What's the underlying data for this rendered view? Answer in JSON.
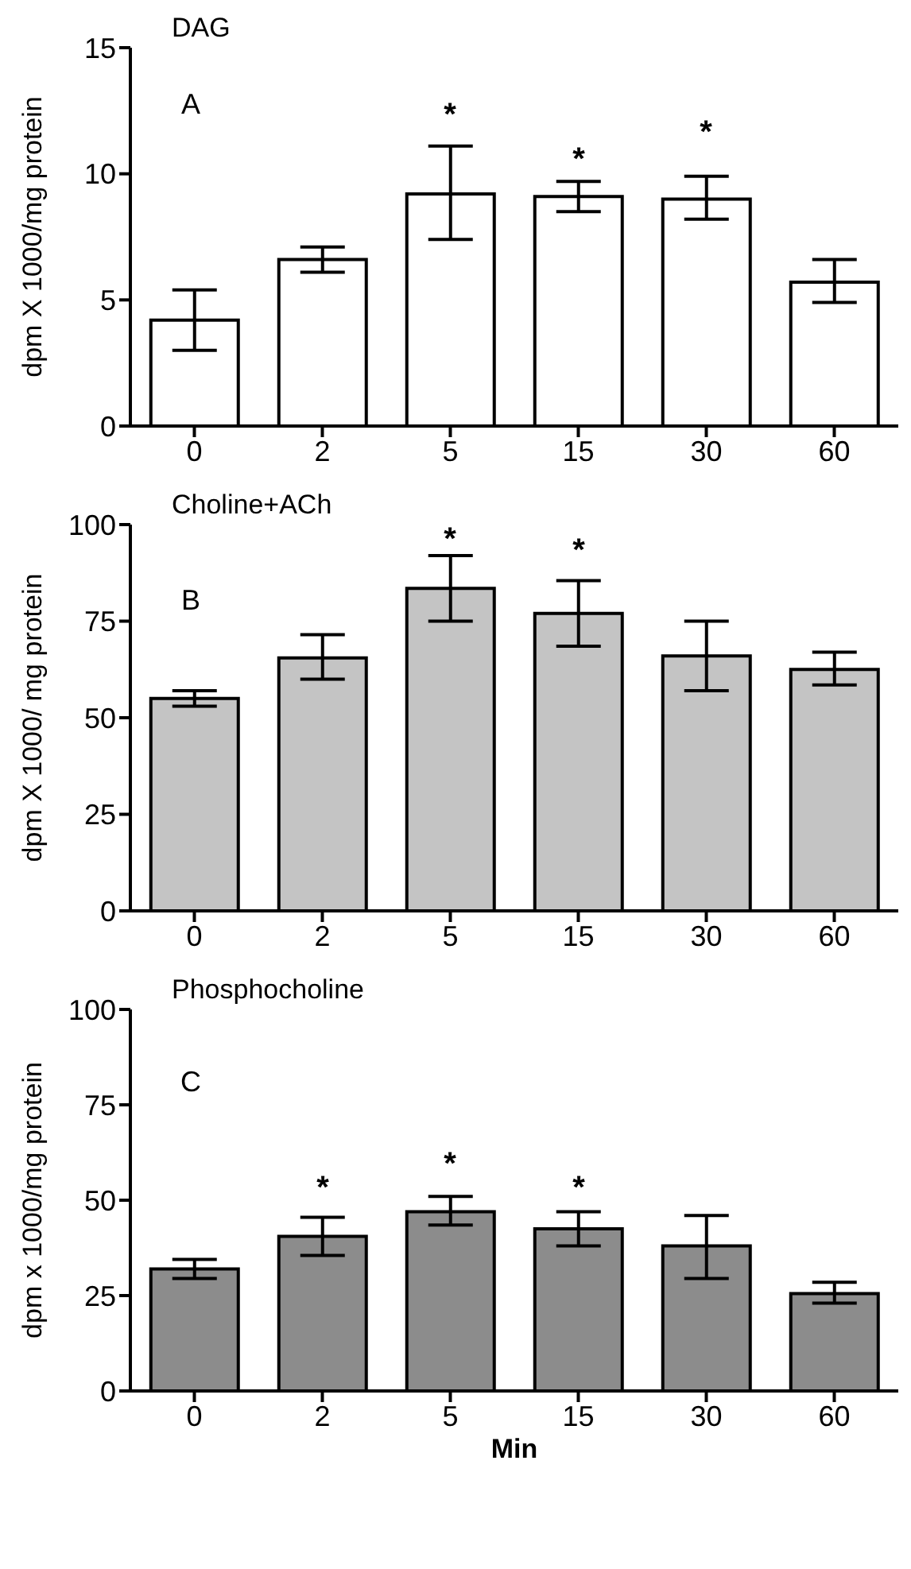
{
  "chart_data": [
    {
      "type": "bar",
      "title": "DAG",
      "ylabel": "dpm X 1000/mg protein",
      "categories": [
        "0",
        "2",
        "5",
        "15",
        "30",
        "60"
      ],
      "series": [
        {
          "color": "#ffffff",
          "values": [
            4.2,
            6.6,
            9.2,
            9.1,
            9.0,
            5.7
          ],
          "errors": [
            [
              3.0,
              5.4
            ],
            [
              6.1,
              7.1
            ],
            [
              7.4,
              11.1
            ],
            [
              8.5,
              9.7
            ],
            [
              8.2,
              9.9
            ],
            [
              4.9,
              6.6
            ]
          ]
        }
      ],
      "ylim": [
        0,
        15
      ],
      "yticks": [
        0,
        5,
        10,
        15
      ],
      "annotations": [
        "A",
        "*",
        "*",
        "*"
      ]
    },
    {
      "type": "bar",
      "title": "Choline+ACh",
      "ylabel": "dpm X 1000/ mg protein",
      "categories": [
        "0",
        "2",
        "5",
        "15",
        "30",
        "60"
      ],
      "series": [
        {
          "color": "#c4c4c4",
          "values": [
            55,
            65.5,
            83.5,
            77,
            66,
            62.5
          ],
          "errors": [
            [
              53,
              57
            ],
            [
              60,
              71.5
            ],
            [
              75,
              92
            ],
            [
              68.5,
              85.5
            ],
            [
              57,
              75
            ],
            [
              58.5,
              67
            ]
          ]
        }
      ],
      "ylim": [
        0,
        100
      ],
      "yticks": [
        0,
        25,
        50,
        75,
        100
      ],
      "annotations": [
        "B",
        "*",
        "*"
      ]
    },
    {
      "type": "bar",
      "title": "Phosphocholine",
      "xlabel": "Min",
      "ylabel": "dpm x 1000/mg protein",
      "categories": [
        "0",
        "2",
        "5",
        "15",
        "30",
        "60"
      ],
      "series": [
        {
          "color": "#8c8c8c",
          "values": [
            32,
            40.5,
            47,
            42.5,
            38,
            25.5
          ],
          "errors": [
            [
              29.5,
              34.5
            ],
            [
              35.5,
              45.5
            ],
            [
              43.5,
              51
            ],
            [
              38,
              47
            ],
            [
              29.5,
              46
            ],
            [
              23,
              28.5
            ]
          ]
        }
      ],
      "ylim": [
        0,
        100
      ],
      "yticks": [
        0,
        25,
        50,
        75,
        100
      ],
      "annotations": [
        "C",
        "*",
        "*",
        "*"
      ]
    }
  ]
}
